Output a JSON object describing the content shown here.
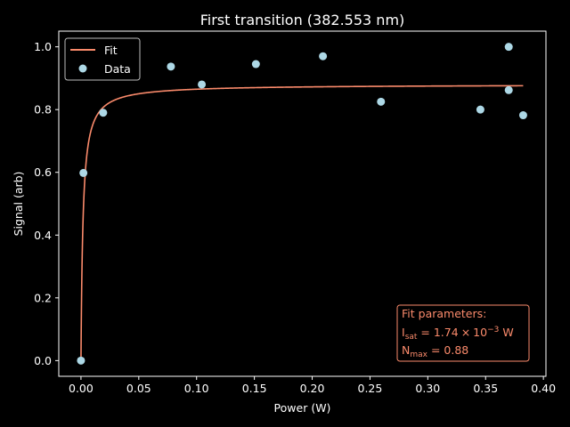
{
  "chart_data": {
    "type": "scatter",
    "title": "First transition (382.553 nm)",
    "xlabel": "Power (W)",
    "ylabel": "Signal (arb)",
    "xlim": [
      -0.0192,
      0.4022
    ],
    "ylim": [
      -0.05,
      1.05
    ],
    "xticks": [
      0.0,
      0.05,
      0.1,
      0.15,
      0.2,
      0.25,
      0.3,
      0.35,
      0.4
    ],
    "xtick_labels": [
      "0.00",
      "0.05",
      "0.10",
      "0.15",
      "0.20",
      "0.25",
      "0.30",
      "0.35",
      "0.40"
    ],
    "yticks": [
      0.0,
      0.2,
      0.4,
      0.6,
      0.8,
      1.0
    ],
    "ytick_labels": [
      "0.0",
      "0.2",
      "0.4",
      "0.6",
      "0.8",
      "1.0"
    ],
    "grid": false,
    "legend_position": "upper-left",
    "series": [
      {
        "name": "Fit",
        "kind": "line",
        "color": "#fa8a6b",
        "model": "saturation",
        "params": {
          "N_max": 0.88,
          "I_sat": 0.00174
        },
        "x_range": [
          0.0,
          0.3825
        ]
      },
      {
        "name": "Data",
        "kind": "scatter",
        "color": "#add8e6",
        "points": [
          [
            0.0,
            0.0
          ],
          [
            0.0021,
            0.598
          ],
          [
            0.0192,
            0.79
          ],
          [
            0.0778,
            0.937
          ],
          [
            0.1045,
            0.88
          ],
          [
            0.1513,
            0.945
          ],
          [
            0.2093,
            0.97
          ],
          [
            0.2595,
            0.825
          ],
          [
            0.3455,
            0.8
          ],
          [
            0.37,
            1.0
          ],
          [
            0.37,
            0.862
          ],
          [
            0.3825,
            0.782
          ]
        ]
      }
    ],
    "annotation": {
      "heading": "Fit parameters:",
      "isat_symbol": "I",
      "isat_sub": "sat",
      "isat_eq": " = 1.74",
      "isat_times": "×",
      "isat_base": "10",
      "isat_exp": "−3",
      "isat_unit": " W",
      "nmax_symbol": "N",
      "nmax_sub": "max",
      "nmax_eq": " = 0.88",
      "color": "#fa8a6b",
      "position": "lower-right"
    }
  }
}
